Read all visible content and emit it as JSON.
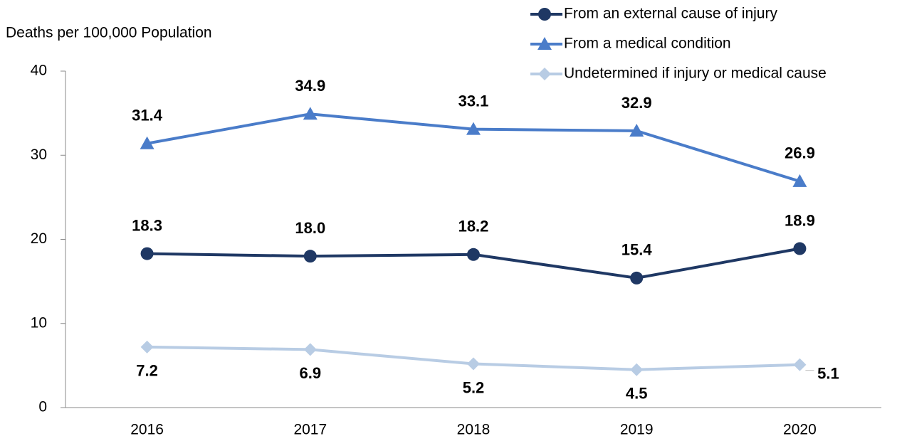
{
  "chart_data": {
    "type": "line",
    "y_label": "Deaths per 100,000 Population",
    "categories": [
      "2016",
      "2017",
      "2018",
      "2019",
      "2020"
    ],
    "series": [
      {
        "name": "From an external cause of injury",
        "color": "#1f3864",
        "marker": "circle",
        "values": [
          18.3,
          18.0,
          18.2,
          15.4,
          18.9
        ],
        "value_labels": [
          "18.3",
          "18.0",
          "18.2",
          "15.4",
          "18.9"
        ]
      },
      {
        "name": "From a medical condition",
        "color": "#4a7cc9",
        "marker": "triangle",
        "values": [
          31.4,
          34.9,
          33.1,
          32.9,
          26.9
        ],
        "value_labels": [
          "31.4",
          "34.9",
          "33.1",
          "32.9",
          "26.9"
        ]
      },
      {
        "name": "Undetermined if injury or medical cause",
        "color": "#b8cce4",
        "marker": "diamond",
        "values": [
          7.2,
          6.9,
          5.2,
          4.5,
          5.1
        ],
        "value_labels": [
          "7.2",
          "6.9",
          "5.2",
          "4.5",
          "5.1"
        ]
      }
    ],
    "ylim": [
      0,
      40
    ],
    "yticks": [
      0,
      10,
      20,
      30,
      40
    ],
    "grid": false
  }
}
